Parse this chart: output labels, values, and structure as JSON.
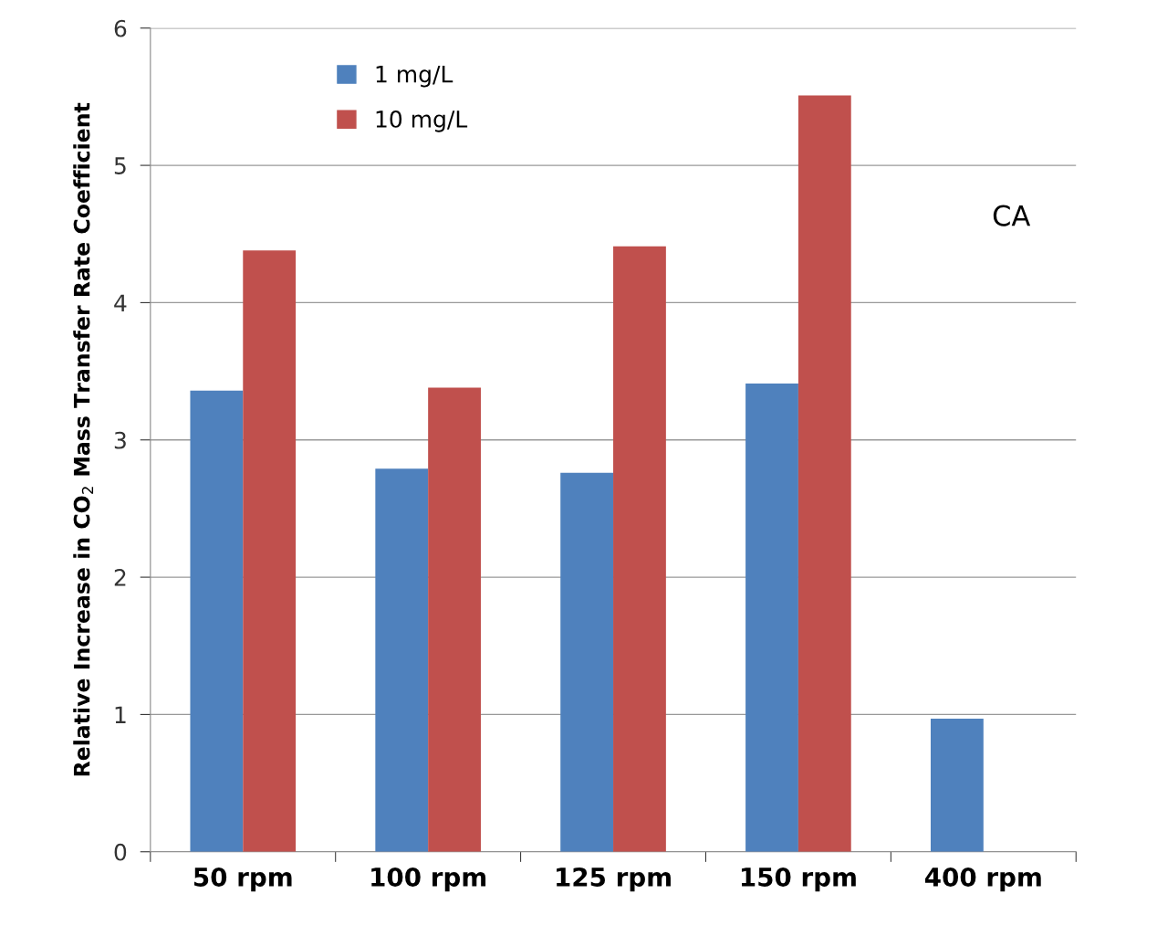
{
  "chart_data": {
    "type": "bar",
    "ylabel": "Relative Increase in CO$_{2}$ Mass Transfer Rate Coefficient",
    "categories": [
      "50 rpm",
      "100 rpm",
      "125 rpm",
      "150 rpm",
      "400 rpm"
    ],
    "series": [
      {
        "name": "1 mg/L",
        "color": "#4f81bd",
        "values": [
          3.36,
          2.79,
          2.76,
          3.41,
          0.97
        ]
      },
      {
        "name": "10 mg/L",
        "color": "#c0504d",
        "values": [
          4.38,
          3.38,
          4.41,
          5.51,
          null
        ]
      }
    ],
    "ylim": [
      0,
      6
    ],
    "yticks": [
      0,
      1,
      2,
      3,
      4,
      5,
      6
    ],
    "grid": "y",
    "legend": "top left",
    "annotations": [
      "CA"
    ]
  }
}
